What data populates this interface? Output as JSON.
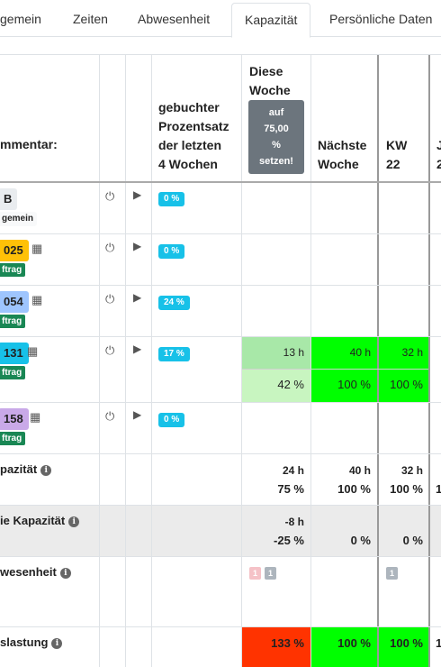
{
  "tabs": [
    {
      "label": "gemein",
      "active": false
    },
    {
      "label": "Zeiten",
      "active": false
    },
    {
      "label": "Abwesenheit",
      "active": false
    },
    {
      "label": "Kapazität",
      "active": true
    },
    {
      "label": "Persönliche Daten",
      "active": false
    }
  ],
  "headers": {
    "kommentar": "mmentar:",
    "prozentsatz": [
      "gebuchter",
      "Prozentsatz",
      "der letzten",
      "4 Wochen"
    ],
    "diese_woche": [
      "Diese",
      "Woche"
    ],
    "set_button": [
      "auf",
      "75,00",
      "%",
      "setzen!"
    ],
    "naechste_woche": [
      "Nächste",
      "Woche"
    ],
    "kw22": [
      "KW",
      "22"
    ],
    "cut_col": [
      "J",
      "2"
    ]
  },
  "rows": [
    {
      "code": "B",
      "code_color": "#e9ecef",
      "type": "gemein",
      "type_style": "light",
      "pct": "0 %",
      "calendar": false
    },
    {
      "code": "025",
      "code_color": "#ffc107",
      "type": "ftrag",
      "type_style": "green",
      "pct": "0 %",
      "calendar": true
    },
    {
      "code": "054",
      "code_color": "#9ec5fe",
      "type": "ftrag",
      "type_style": "green",
      "pct": "24 %",
      "calendar": true
    },
    {
      "code": "131",
      "code_color": "#17c1e8",
      "type": "ftrag",
      "type_style": "green",
      "pct": "17 %",
      "calendar": true,
      "diese_h": "13 h",
      "diese_p": "42 %",
      "naechste_h": "40 h",
      "naechste_p": "100 %",
      "kw_h": "32 h",
      "kw_p": "100 %"
    },
    {
      "code": "158",
      "code_color": "#c9a9e8",
      "type": "ftrag",
      "type_style": "green",
      "pct": "0 %",
      "calendar": true
    }
  ],
  "summary": {
    "kapazitaet": {
      "label": "pazität",
      "diese_h": "24 h",
      "diese_p": "75 %",
      "naechste_h": "40 h",
      "naechste_p": "100 %",
      "kw_h": "32 h",
      "kw_p": "100 %",
      "cut": "1"
    },
    "freie": {
      "label": "ie Kapazität",
      "diese_h": "-8 h",
      "diese_p": "-25 %",
      "naechste_p": "0 %",
      "kw_p": "0 %"
    },
    "abwesenheit": {
      "label": "wesenheit",
      "badge_pink": "1",
      "badge_gray": "1",
      "kw_badge": "1"
    },
    "auslastung": {
      "label": "slastung",
      "diese": "133 %",
      "naechste": "100 %",
      "kw": "100 %",
      "cut": "1"
    }
  },
  "colors": {
    "green": "#00ff00",
    "red": "#ff3300",
    "cyan": "#17c1e8",
    "type_green": "#198754"
  }
}
